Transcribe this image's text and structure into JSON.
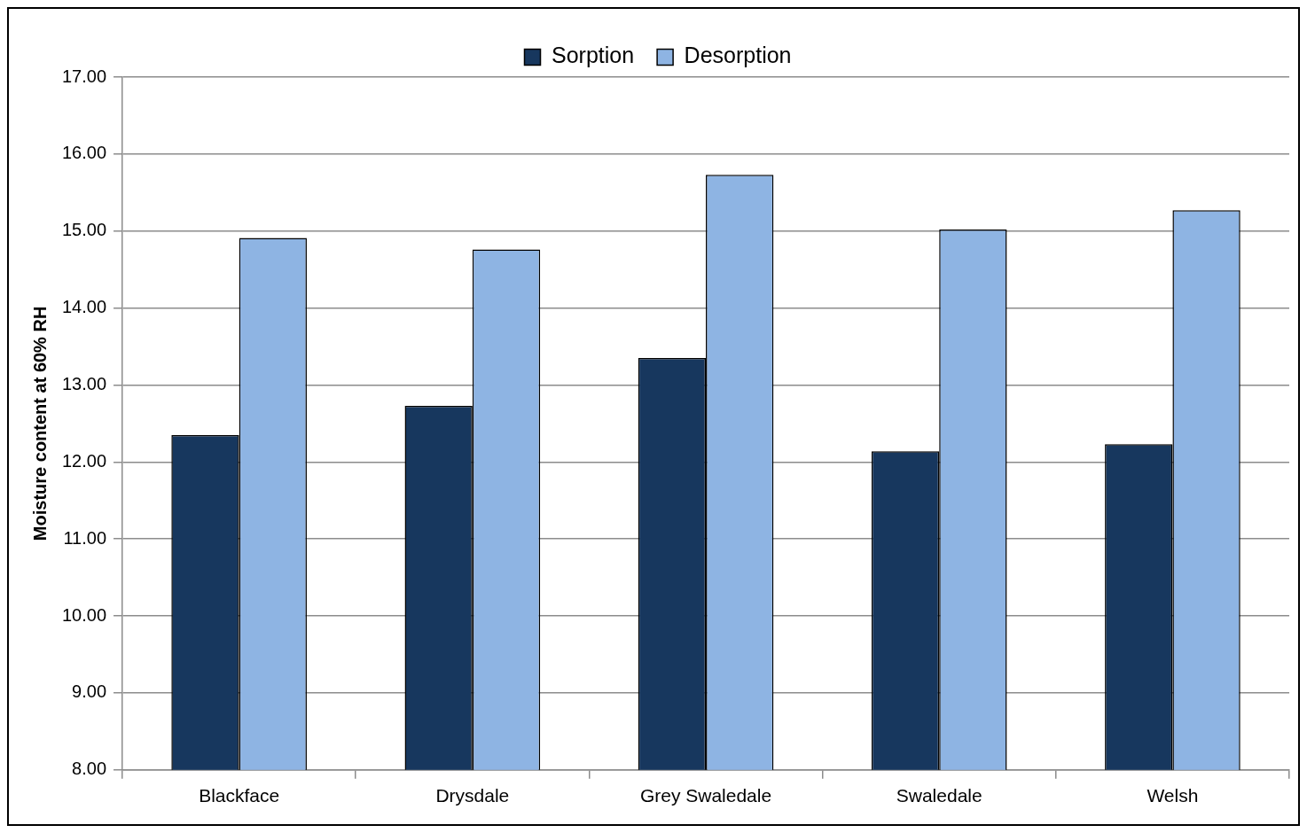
{
  "chart_data": {
    "type": "bar",
    "ylabel": "Moisture content at 60% RH",
    "categories": [
      "Blackface",
      "Drysdale",
      "Grey Swaledale",
      "Swaledale",
      "Welsh"
    ],
    "series": [
      {
        "name": "Sorption",
        "color": "#17375e",
        "values": [
          12.35,
          12.73,
          13.35,
          12.14,
          12.23
        ]
      },
      {
        "name": "Desorption",
        "color": "#8eb4e3",
        "values": [
          14.91,
          14.76,
          15.73,
          15.02,
          15.27
        ]
      }
    ],
    "ylim": [
      8,
      17
    ],
    "yticks": [
      {
        "value": 8,
        "label": "8.00"
      },
      {
        "value": 9,
        "label": "9.00"
      },
      {
        "value": 10,
        "label": "10.00"
      },
      {
        "value": 11,
        "label": "11.00"
      },
      {
        "value": 12,
        "label": "12.00"
      },
      {
        "value": 13,
        "label": "13.00"
      },
      {
        "value": 14,
        "label": "14.00"
      },
      {
        "value": 15,
        "label": "15.00"
      },
      {
        "value": 16,
        "label": "16.00"
      },
      {
        "value": 17,
        "label": "17.00"
      }
    ],
    "grid": "y",
    "legend": "top"
  }
}
